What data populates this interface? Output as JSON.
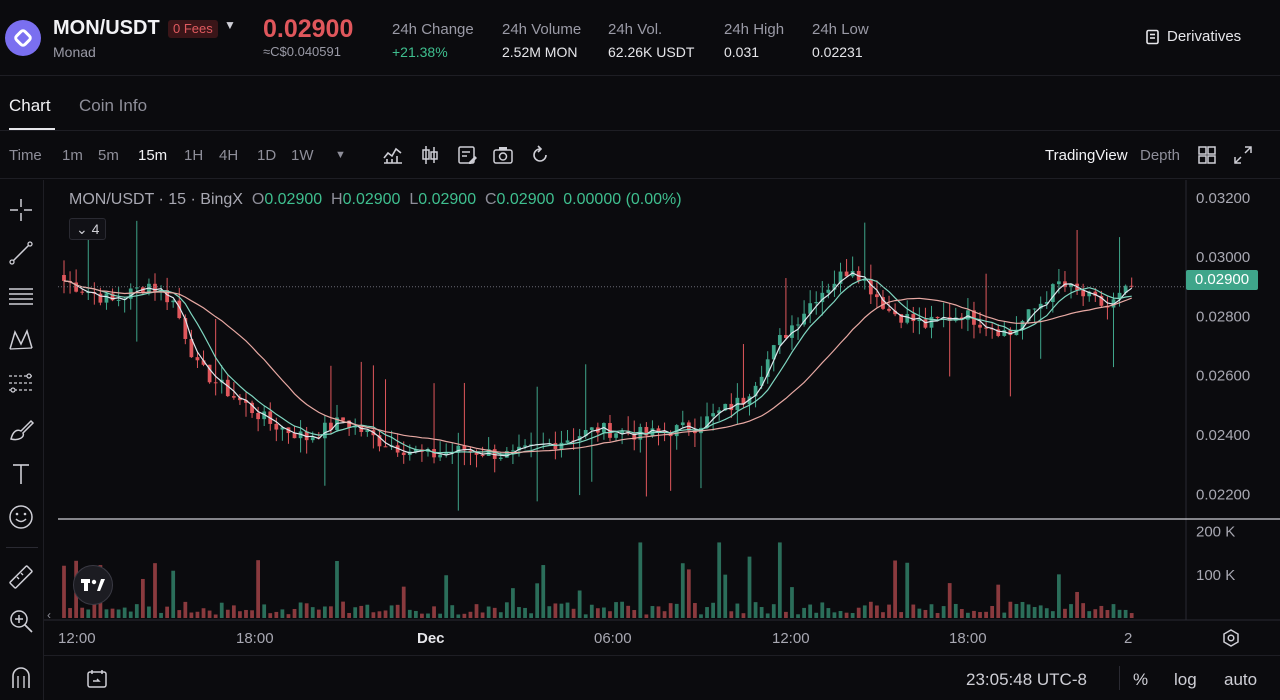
{
  "header": {
    "pair": "MON/USDT",
    "fees_badge": "0 Fees",
    "coin_name": "Monad",
    "last_price": "0.02900",
    "fiat_price": "≈C$0.040591",
    "stats": [
      {
        "label": "24h Change",
        "value": "+21.38%"
      },
      {
        "label": "24h Volume",
        "value": "2.52M MON"
      },
      {
        "label": "24h Vol.",
        "value": "62.26K USDT"
      },
      {
        "label": "24h High",
        "value": "0.031"
      },
      {
        "label": "24h Low",
        "value": "0.02231"
      }
    ],
    "derivatives_label": "Derivatives"
  },
  "tabs": [
    {
      "label": "Chart",
      "active": true
    },
    {
      "label": "Coin Info",
      "active": false
    }
  ],
  "toolbar": {
    "timeframes": [
      "Time",
      "1m",
      "5m",
      "15m",
      "1H",
      "4H",
      "1D",
      "1W"
    ],
    "active_timeframe": "15m",
    "tools": [
      "indicators-icon",
      "candle-type-icon",
      "template-icon",
      "camera-icon",
      "reset-icon"
    ],
    "view_mode": "TradingView",
    "depth_label": "Depth"
  },
  "chart": {
    "legend": {
      "symbol": "MON/USDT · 15 · BingX",
      "open": "0.02900",
      "high": "0.02900",
      "low": "0.02900",
      "close": "0.02900",
      "change": "0.00000 (0.00%)",
      "o_key": "O",
      "h_key": "H",
      "l_key": "L",
      "c_key": "C"
    },
    "indicator_count": "4",
    "current_price_label": "0.02900",
    "colors": {
      "up": "#3fa58a",
      "down": "#e0575c",
      "ma_fast": "#dfe9ee",
      "ma_mid": "#7fd6c0",
      "ma_slow": "#e8a9a3"
    }
  },
  "chart_data": {
    "type": "candlestick",
    "interval": "15m",
    "ylim": [
      0.0212,
      0.0326
    ],
    "yticks": [
      "0.03200",
      "0.03000",
      "0.02800",
      "0.02600",
      "0.02400",
      "0.02200"
    ],
    "xticks": [
      "12:00",
      "18:00",
      "Dec",
      "06:00",
      "12:00",
      "18:00",
      "2"
    ],
    "volume_ticks": [
      "200 K",
      "100 K"
    ],
    "price_anchors": [
      [
        0,
        0.0292
      ],
      [
        8,
        0.0285
      ],
      [
        14,
        0.0291
      ],
      [
        18,
        0.0285
      ],
      [
        22,
        0.0263
      ],
      [
        28,
        0.0253
      ],
      [
        34,
        0.0244
      ],
      [
        40,
        0.0239
      ],
      [
        46,
        0.0245
      ],
      [
        52,
        0.0238
      ],
      [
        60,
        0.0233
      ],
      [
        66,
        0.0235
      ],
      [
        74,
        0.0233
      ],
      [
        80,
        0.0237
      ],
      [
        88,
        0.0242
      ],
      [
        96,
        0.024
      ],
      [
        104,
        0.0243
      ],
      [
        112,
        0.0252
      ],
      [
        118,
        0.0272
      ],
      [
        124,
        0.0287
      ],
      [
        130,
        0.0297
      ],
      [
        136,
        0.0282
      ],
      [
        142,
        0.0277
      ],
      [
        148,
        0.0281
      ],
      [
        156,
        0.0274
      ],
      [
        164,
        0.0291
      ],
      [
        172,
        0.0283
      ],
      [
        176,
        0.029
      ]
    ]
  },
  "bottombar": {
    "clock": "23:05:48 UTC-8",
    "percent": "%",
    "log": "log",
    "auto": "auto"
  }
}
